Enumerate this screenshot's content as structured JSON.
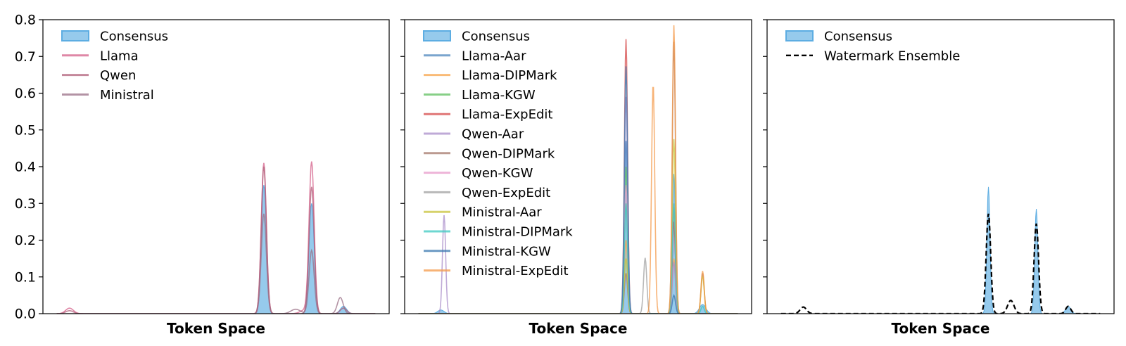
{
  "chart_data": [
    {
      "type": "area",
      "xlabel": "Token Space",
      "ylabel": "",
      "ylim": [
        0,
        0.8
      ],
      "yticks": [
        "0.0",
        "0.1",
        "0.2",
        "0.3",
        "0.4",
        "0.5",
        "0.6",
        "0.7",
        "0.8"
      ],
      "legend_position": "top-left",
      "consensus": {
        "name": "Consensus",
        "color": "#5dade2",
        "peaks": [
          [
            0.65,
            0.35,
            0.008
          ],
          [
            0.8,
            0.3,
            0.008
          ],
          [
            0.9,
            0.02,
            0.01
          ]
        ]
      },
      "series": [
        {
          "name": "Llama",
          "color": "#d4608a",
          "peaks": [
            [
              0.65,
              0.41,
              0.008
            ],
            [
              0.8,
              0.41,
              0.008
            ],
            [
              0.04,
              0.015,
              0.012
            ],
            [
              0.78,
              0.01,
              0.015
            ]
          ]
        },
        {
          "name": "Qwen",
          "color": "#b0607a",
          "peaks": [
            [
              0.65,
              0.4,
              0.008
            ],
            [
              0.8,
              0.345,
              0.008
            ],
            [
              0.04,
              0.008,
              0.012
            ],
            [
              0.9,
              0.015,
              0.01
            ]
          ]
        },
        {
          "name": "Ministral",
          "color": "#9a6f86",
          "peaks": [
            [
              0.65,
              0.272,
              0.008
            ],
            [
              0.8,
              0.172,
              0.008
            ],
            [
              0.89,
              0.044,
              0.009
            ],
            [
              0.75,
              0.012,
              0.015
            ]
          ]
        }
      ]
    },
    {
      "type": "area",
      "xlabel": "Token Space",
      "ylabel": "",
      "ylim": [
        0,
        0.8
      ],
      "legend_position": "top-left",
      "consensus": {
        "name": "Consensus",
        "color": "#5dade2",
        "peaks": [
          [
            0.65,
            0.47,
            0.005
          ],
          [
            0.8,
            0.38,
            0.005
          ],
          [
            0.07,
            0.01,
            0.01
          ],
          [
            0.89,
            0.025,
            0.01
          ]
        ]
      },
      "series": [
        {
          "name": "Llama-Aar",
          "color": "#4d87bd",
          "peaks": [
            [
              0.65,
              0.47,
              0.005
            ],
            [
              0.8,
              0.25,
              0.005
            ]
          ]
        },
        {
          "name": "Llama-DIPMark",
          "color": "#f7a44a",
          "peaks": [
            [
              0.65,
              0.2,
              0.005
            ],
            [
              0.8,
              0.15,
              0.005
            ]
          ]
        },
        {
          "name": "Llama-KGW",
          "color": "#5fbf5f",
          "peaks": [
            [
              0.65,
              0.4,
              0.005
            ],
            [
              0.8,
              0.28,
              0.005
            ]
          ]
        },
        {
          "name": "Llama-ExpEdit",
          "color": "#d64a4a",
          "peaks": [
            [
              0.65,
              0.747,
              0.005
            ],
            [
              0.8,
              0.25,
              0.005
            ]
          ]
        },
        {
          "name": "Qwen-Aar",
          "color": "#a98dc9",
          "peaks": [
            [
              0.65,
              0.59,
              0.005
            ],
            [
              0.08,
              0.268,
              0.005
            ],
            [
              0.8,
              0.14,
              0.005
            ]
          ]
        },
        {
          "name": "Qwen-DIPMark",
          "color": "#a5786b",
          "peaks": [
            [
              0.65,
              0.11,
              0.005
            ],
            [
              0.8,
              0.74,
              0.005
            ],
            [
              0.89,
              0.11,
              0.005
            ]
          ]
        },
        {
          "name": "Qwen-KGW",
          "color": "#e89bcb",
          "peaks": [
            [
              0.65,
              0.35,
              0.005
            ],
            [
              0.8,
              0.3,
              0.005
            ]
          ]
        },
        {
          "name": "Qwen-ExpEdit",
          "color": "#a0a0a0",
          "peaks": [
            [
              0.65,
              0.3,
              0.005
            ],
            [
              0.71,
              0.152,
              0.005
            ],
            [
              0.8,
              0.29,
              0.005
            ]
          ]
        },
        {
          "name": "Ministral-Aar",
          "color": "#c8c33a",
          "peaks": [
            [
              0.8,
              0.475,
              0.005
            ],
            [
              0.89,
              0.102,
              0.005
            ],
            [
              0.65,
              0.15,
              0.005
            ]
          ]
        },
        {
          "name": "Ministral-DIPMark",
          "color": "#3ec9c1",
          "peaks": [
            [
              0.65,
              0.3,
              0.005
            ],
            [
              0.8,
              0.3,
              0.005
            ],
            [
              0.89,
              0.02,
              0.005
            ]
          ]
        },
        {
          "name": "Ministral-KGW",
          "color": "#3a78b0",
          "peaks": [
            [
              0.65,
              0.673,
              0.005
            ],
            [
              0.8,
              0.05,
              0.005
            ]
          ]
        },
        {
          "name": "Ministral-ExpEdit",
          "color": "#f49a4a",
          "peaks": [
            [
              0.735,
              0.628,
              0.005
            ],
            [
              0.8,
              0.785,
              0.005
            ],
            [
              0.89,
              0.116,
              0.005
            ]
          ]
        }
      ]
    },
    {
      "type": "area",
      "xlabel": "Token Space",
      "ylabel": "",
      "ylim": [
        0,
        0.8
      ],
      "legend_position": "top-left",
      "consensus": {
        "name": "Consensus",
        "color": "#5dade2",
        "peaks": [
          [
            0.65,
            0.345,
            0.005
          ],
          [
            0.8,
            0.285,
            0.005
          ],
          [
            0.9,
            0.02,
            0.008
          ]
        ]
      },
      "series": [
        {
          "name": "Watermark Ensemble",
          "color": "#000000",
          "dash": true,
          "peaks": [
            [
              0.65,
              0.272,
              0.007
            ],
            [
              0.8,
              0.245,
              0.007
            ],
            [
              0.07,
              0.018,
              0.01
            ],
            [
              0.72,
              0.036,
              0.01
            ],
            [
              0.9,
              0.02,
              0.008
            ]
          ]
        }
      ]
    }
  ]
}
